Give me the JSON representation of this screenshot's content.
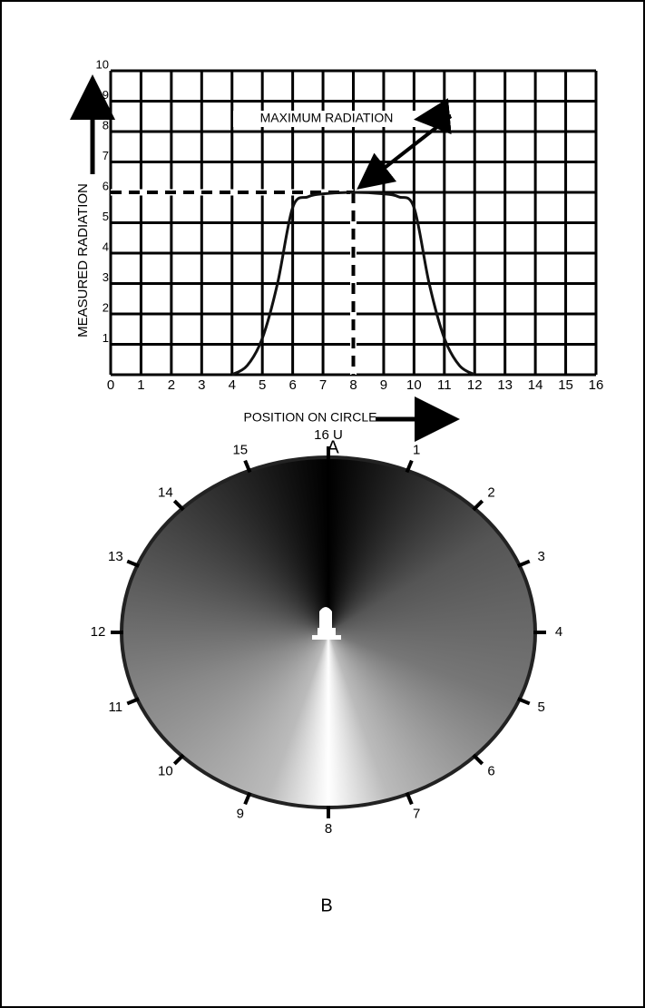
{
  "chart_data": {
    "type": "line",
    "annotation": "MAXIMUM RADIATION",
    "y_label": "MEASURED RADIATION",
    "x_label": "POSITION ON CIRCLE",
    "caption": "A",
    "x": [
      4,
      4.5,
      5,
      5.5,
      6,
      6.5,
      7,
      8,
      9,
      9.5,
      10,
      10.5,
      11,
      11.5,
      12
    ],
    "values": [
      0,
      0.3,
      1.2,
      3,
      5.5,
      5.85,
      5.95,
      6,
      5.95,
      5.85,
      5.5,
      3,
      1.2,
      0.3,
      0
    ],
    "color": "#111",
    "maximum": {
      "x": 8,
      "y": 6
    },
    "xlim": [
      0,
      16
    ],
    "ylim": [
      0,
      10
    ],
    "xticks": [
      0,
      1,
      2,
      3,
      4,
      5,
      6,
      7,
      8,
      9,
      10,
      11,
      12,
      13,
      14,
      15,
      16
    ],
    "yticks": [
      1,
      2,
      3,
      4,
      5,
      6,
      7,
      8,
      9,
      10
    ],
    "grid": true
  },
  "circle": {
    "positions": [
      "16 U",
      "1",
      "2",
      "3",
      "4",
      "5",
      "6",
      "7",
      "8",
      "9",
      "10",
      "11",
      "12",
      "13",
      "14",
      "15"
    ],
    "caption": "B"
  }
}
